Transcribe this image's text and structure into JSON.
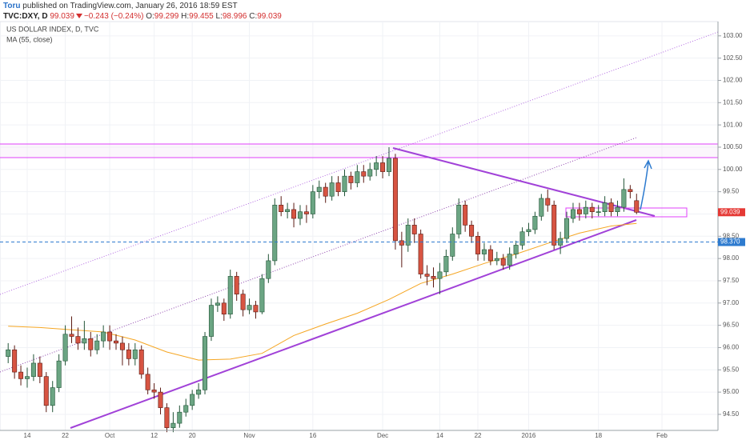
{
  "header": {
    "author": "Toru",
    "published": "published on TradingView.com, January 26, 2016 18:59 EST"
  },
  "chart_data": {
    "type": "candlestick",
    "title": "US DOLLAR INDEX, D, TVC",
    "symbol": "TVC:DXY, D",
    "change": "−0.243 (−0.24%)",
    "ohlc_labels": [
      "O:",
      "H:",
      "L:",
      "C:"
    ],
    "categories": [
      null,
      null,
      null,
      "14",
      null,
      null,
      null,
      null,
      null,
      "22",
      null,
      null,
      null,
      null,
      null,
      null,
      "Oct",
      null,
      null,
      null,
      null,
      null,
      null,
      "12",
      null,
      null,
      null,
      null,
      null,
      "20",
      null,
      null,
      null,
      null,
      null,
      null,
      null,
      null,
      "Nov",
      null,
      null,
      null,
      null,
      null,
      null,
      null,
      null,
      null,
      "16",
      null,
      null,
      null,
      null,
      null,
      null,
      null,
      null,
      null,
      null,
      "Dec",
      null,
      null,
      null,
      null,
      null,
      null,
      null,
      null,
      "14",
      null,
      null,
      null,
      null,
      null,
      "22",
      null,
      null,
      null,
      null,
      null,
      null,
      null,
      "2016",
      null,
      null,
      null,
      null,
      null,
      null,
      null,
      null,
      null,
      null,
      "18",
      null,
      null,
      null,
      null,
      null,
      null,
      null,
      null,
      null,
      "Feb"
    ],
    "open": [
      95.8,
      95.95,
      95.45,
      95.3,
      95.35,
      95.65,
      95.35,
      94.7,
      95.1,
      95.7,
      96.3,
      96.25,
      96.1,
      96.2,
      95.95,
      96.15,
      96.35,
      96.15,
      96.1,
      95.95,
      95.75,
      95.95,
      95.4,
      95.05,
      95.0,
      94.65,
      94.2,
      94.3,
      94.55,
      94.7,
      94.95,
      95.05,
      96.25,
      96.95,
      97.0,
      96.75,
      97.6,
      97.2,
      96.85,
      96.95,
      96.8,
      97.55,
      97.95,
      99.2,
      99.05,
      99.1,
      98.9,
      99.05,
      99.0,
      99.5,
      99.6,
      99.4,
      99.7,
      99.5,
      99.85,
      99.7,
      99.95,
      99.85,
      100.0,
      100.15,
      99.95,
      100.25,
      98.4,
      98.3,
      98.75,
      98.55,
      97.65,
      97.6,
      97.55,
      97.7,
      98.05,
      98.55,
      99.2,
      98.75,
      98.5,
      98.1,
      98.2,
      97.95,
      98.0,
      97.85,
      98.1,
      98.3,
      98.6,
      98.65,
      98.95,
      99.35,
      99.2,
      98.3,
      98.45,
      98.9,
      99.1,
      99.0,
      99.15,
      99.05,
      99.05,
      99.25,
      99.05,
      99.15,
      99.55,
      99.299,
      null,
      null,
      null,
      null
    ],
    "high": [
      96.1,
      96.05,
      95.6,
      95.55,
      95.85,
      95.8,
      95.45,
      95.25,
      95.85,
      96.5,
      96.7,
      96.45,
      96.6,
      96.35,
      96.3,
      96.5,
      96.5,
      96.3,
      96.25,
      96.1,
      96.1,
      96.05,
      95.55,
      95.2,
      95.1,
      94.75,
      94.55,
      94.7,
      94.85,
      95.05,
      95.2,
      96.35,
      97.1,
      97.15,
      97.1,
      97.75,
      97.7,
      97.3,
      97.1,
      97.05,
      97.65,
      98.1,
      99.35,
      99.4,
      99.25,
      99.25,
      99.2,
      99.2,
      99.65,
      99.75,
      99.7,
      99.85,
      99.85,
      100.0,
      99.95,
      100.1,
      100.1,
      100.15,
      100.3,
      100.3,
      100.5,
      100.35,
      98.6,
      98.9,
      98.9,
      98.65,
      97.85,
      97.8,
      97.9,
      98.2,
      98.7,
      99.35,
      99.3,
      98.85,
      98.6,
      98.35,
      98.3,
      98.15,
      98.1,
      98.25,
      98.4,
      98.7,
      98.8,
      99.05,
      99.45,
      99.55,
      99.3,
      98.6,
      99.05,
      99.25,
      99.25,
      99.3,
      99.25,
      99.2,
      99.4,
      99.35,
      99.3,
      99.8,
      99.65,
      99.455,
      null,
      null,
      null,
      null
    ],
    "low": [
      95.65,
      95.3,
      95.15,
      95.1,
      95.25,
      95.2,
      94.55,
      94.55,
      95.0,
      95.6,
      96.1,
      95.95,
      95.95,
      95.8,
      95.85,
      96.0,
      95.95,
      95.95,
      95.6,
      95.6,
      95.6,
      95.3,
      94.95,
      94.85,
      94.5,
      94.1,
      94.1,
      94.2,
      94.45,
      94.6,
      94.85,
      94.95,
      96.15,
      96.8,
      96.6,
      96.65,
      97.05,
      96.7,
      96.75,
      96.65,
      96.75,
      97.45,
      97.85,
      98.95,
      98.9,
      98.7,
      98.75,
      98.8,
      98.9,
      99.35,
      99.25,
      99.3,
      99.4,
      99.4,
      99.55,
      99.6,
      99.7,
      99.75,
      99.85,
      99.8,
      99.85,
      98.2,
      97.8,
      98.15,
      98.35,
      97.55,
      97.4,
      97.35,
      97.2,
      97.6,
      97.95,
      98.45,
      98.6,
      98.35,
      97.95,
      97.95,
      97.85,
      97.85,
      97.75,
      97.75,
      98.0,
      98.2,
      98.5,
      98.55,
      98.85,
      99.05,
      98.2,
      98.1,
      98.35,
      98.8,
      98.85,
      98.9,
      98.9,
      98.95,
      98.95,
      98.95,
      98.95,
      99.05,
      99.35,
      98.996,
      null,
      null,
      null,
      null
    ],
    "close": [
      95.95,
      95.45,
      95.3,
      95.35,
      95.65,
      95.35,
      94.7,
      95.1,
      95.7,
      96.3,
      96.25,
      96.1,
      96.2,
      95.95,
      96.15,
      96.35,
      96.15,
      96.1,
      95.95,
      95.75,
      95.95,
      95.4,
      95.05,
      95.0,
      94.65,
      94.2,
      94.3,
      94.55,
      94.7,
      94.95,
      95.05,
      96.25,
      96.95,
      97.0,
      96.75,
      97.6,
      97.2,
      96.85,
      96.95,
      96.8,
      97.55,
      97.95,
      99.2,
      99.05,
      99.1,
      98.9,
      99.05,
      99.0,
      99.5,
      99.6,
      99.4,
      99.7,
      99.5,
      99.85,
      99.7,
      99.95,
      99.85,
      100.0,
      100.15,
      99.95,
      100.25,
      98.4,
      98.3,
      98.75,
      98.55,
      97.65,
      97.6,
      97.55,
      97.7,
      98.05,
      98.55,
      99.2,
      98.75,
      98.5,
      98.1,
      98.2,
      97.95,
      98.0,
      97.85,
      98.1,
      98.3,
      98.6,
      98.65,
      98.95,
      99.35,
      99.2,
      98.3,
      98.45,
      98.9,
      99.1,
      99.0,
      99.15,
      99.05,
      99.05,
      99.25,
      99.05,
      99.15,
      99.55,
      99.5,
      99.039,
      null,
      null,
      null,
      null
    ],
    "up_color": "#6ba583",
    "down_color": "#d75442",
    "ma": {
      "name": "MA (55, close)",
      "color": "#f5a623",
      "x": [
        0,
        5,
        10,
        15,
        20,
        25,
        30,
        35,
        40,
        45,
        50,
        55,
        60,
        65,
        70,
        75,
        80,
        85,
        90,
        95,
        99
      ],
      "values": [
        96.48,
        96.45,
        96.4,
        96.35,
        96.17,
        95.9,
        95.72,
        95.74,
        95.87,
        96.27,
        96.53,
        96.77,
        97.08,
        97.44,
        97.65,
        97.89,
        98.1,
        98.34,
        98.57,
        98.73,
        98.79
      ]
    },
    "ylim": [
      94.14,
      103.32
    ],
    "yticks": [
      {
        "value": 94.5,
        "label": "94.50"
      },
      {
        "value": 95,
        "label": "95.00"
      },
      {
        "value": 95.5,
        "label": "95.50"
      },
      {
        "value": 96,
        "label": "96.00"
      },
      {
        "value": 96.5,
        "label": "96.50"
      },
      {
        "value": 97,
        "label": "97.00"
      },
      {
        "value": 97.5,
        "label": "97.50"
      },
      {
        "value": 98,
        "label": "98.00"
      },
      {
        "value": 98.5,
        "label": "98.50"
      },
      {
        "value": 99,
        "label": "99.00"
      },
      {
        "value": 99.5,
        "label": "99.50"
      },
      {
        "value": 100,
        "label": "100.00"
      },
      {
        "value": 100.5,
        "label": "100.50"
      },
      {
        "value": 101,
        "label": "101.00"
      },
      {
        "value": 101.5,
        "label": "101.50"
      },
      {
        "value": 102,
        "label": "102.00"
      },
      {
        "value": 102.5,
        "label": "102.50"
      },
      {
        "value": 103,
        "label": "103.00"
      }
    ],
    "price_line": {
      "value": 98.37,
      "label": "98.370"
    },
    "grid": true
  }
}
